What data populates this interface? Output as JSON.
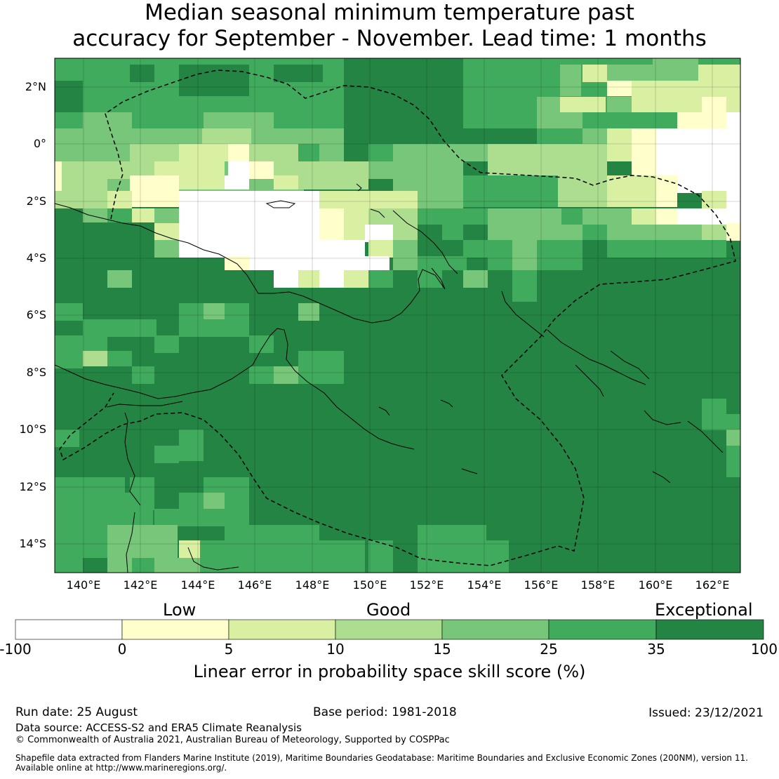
{
  "title_line1": "Median seasonal minimum temperature past",
  "title_line2": "accuracy for September - November. Lead time: 1 months",
  "map": {
    "lon_range": [
      139,
      163
    ],
    "lat_range": [
      -15,
      3
    ],
    "lat_labels": [
      "2°N",
      "0°",
      "2°S",
      "4°S",
      "6°S",
      "8°S",
      "10°S",
      "12°S",
      "14°S"
    ],
    "lon_labels": [
      "140°E",
      "142°E",
      "144°E",
      "146°E",
      "148°E",
      "150°E",
      "152°E",
      "154°E",
      "156°E",
      "158°E",
      "160°E",
      "162°E"
    ]
  },
  "colorbar": {
    "categories": [
      "Low",
      "Good",
      "Exceptional"
    ],
    "ticks": [
      "-100",
      "0",
      "5",
      "10",
      "15",
      "25",
      "35",
      "100"
    ],
    "colors": [
      "#ffffff",
      "#ffffcc",
      "#d9f0a3",
      "#addd8e",
      "#78c679",
      "#41ab5d",
      "#238443"
    ],
    "label": "Linear error in probability space skill score (%)"
  },
  "footer": {
    "run_date": "Run date: 25 August",
    "base_period": "Base period: 1981-2018",
    "issued": "Issued: 23/12/2021",
    "data_source": "Data source: ACCESS-S2 and ERA5 Climate Reanalysis",
    "copyright": "© Commonwealth of Australia 2021, Australian Bureau of Meteorology, Supported by COSPPac",
    "shapefile_line1": "Shapefile data extracted from Flanders Marine Institute (2019), Maritime Boundaries Geodatabase: Maritime Boundaries and Exclusive Economic Zones (200NM), version 11.",
    "shapefile_line2": "Available online at http://www.marineregions.org/."
  }
}
